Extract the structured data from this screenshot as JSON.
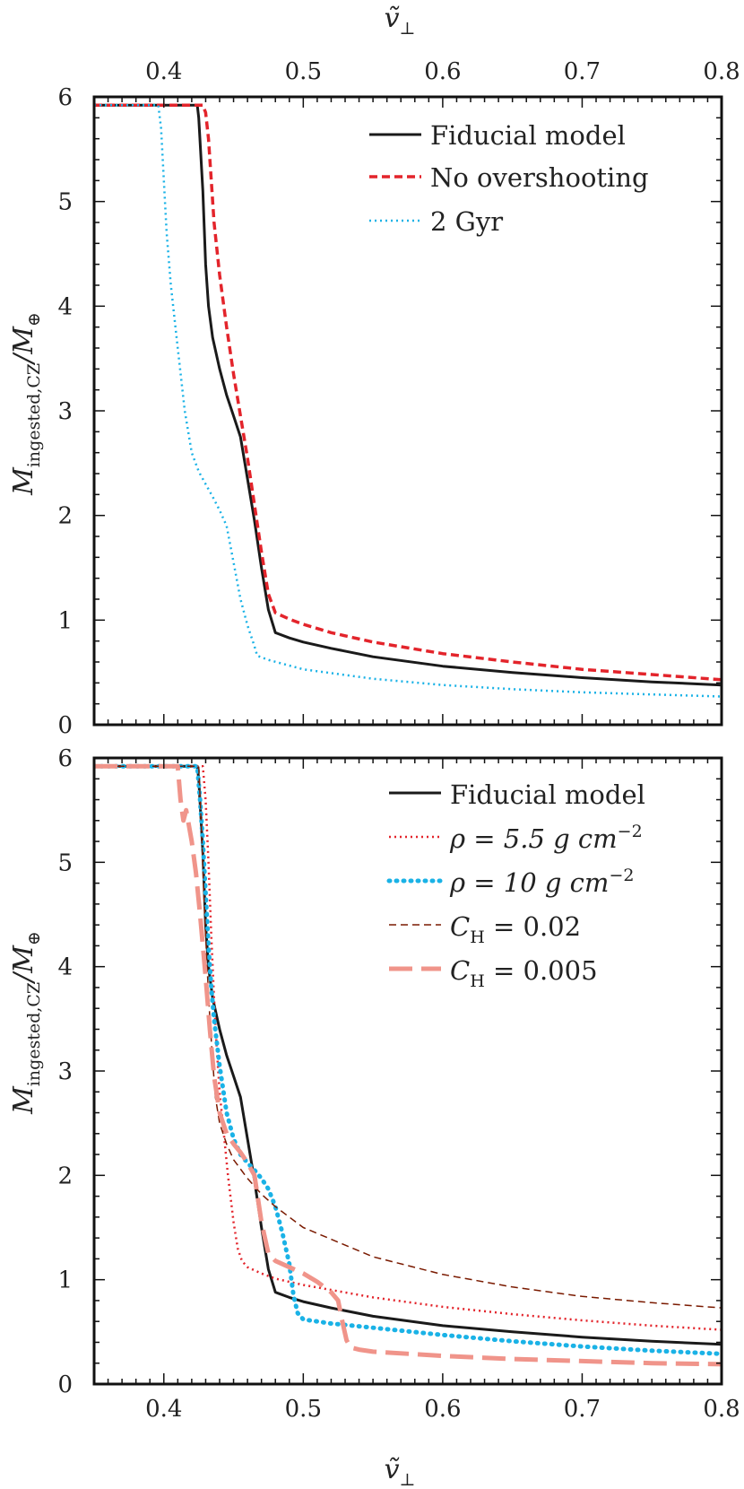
{
  "chart_data": [
    {
      "type": "line",
      "panel": "top",
      "xlabel_top": "ṽ⊥",
      "ylabel": "M_ingested,CZ / M_⊕",
      "xlim": [
        0.35,
        0.8
      ],
      "ylim": [
        0,
        6
      ],
      "xticks": [
        0.4,
        0.5,
        0.6,
        0.7,
        0.8
      ],
      "yticks": [
        0,
        1,
        2,
        3,
        4,
        5,
        6
      ],
      "legend_position": "top-right",
      "series": [
        {
          "name": "Fiducial model",
          "color": "#1a1a1a",
          "style": "solid",
          "x": [
            0.35,
            0.424,
            0.425,
            0.428,
            0.43,
            0.432,
            0.435,
            0.44,
            0.445,
            0.45,
            0.455,
            0.46,
            0.465,
            0.47,
            0.475,
            0.48,
            0.482,
            0.49,
            0.5,
            0.52,
            0.55,
            0.6,
            0.65,
            0.7,
            0.75,
            0.8
          ],
          "y": [
            5.92,
            5.92,
            5.8,
            5.1,
            4.4,
            4.0,
            3.7,
            3.4,
            3.15,
            2.95,
            2.75,
            2.35,
            1.95,
            1.5,
            1.1,
            0.88,
            0.87,
            0.83,
            0.79,
            0.73,
            0.65,
            0.56,
            0.5,
            0.45,
            0.41,
            0.38
          ]
        },
        {
          "name": "No overshooting",
          "color": "#e3242b",
          "style": "dashed",
          "x": [
            0.35,
            0.428,
            0.43,
            0.432,
            0.434,
            0.436,
            0.44,
            0.445,
            0.45,
            0.455,
            0.46,
            0.465,
            0.47,
            0.475,
            0.48,
            0.49,
            0.5,
            0.52,
            0.55,
            0.6,
            0.65,
            0.7,
            0.75,
            0.8
          ],
          "y": [
            5.92,
            5.92,
            5.85,
            5.6,
            5.2,
            4.8,
            4.3,
            3.8,
            3.35,
            2.95,
            2.55,
            2.1,
            1.65,
            1.25,
            1.07,
            1.01,
            0.96,
            0.88,
            0.79,
            0.68,
            0.6,
            0.53,
            0.48,
            0.43
          ]
        },
        {
          "name": "2 Gyr",
          "color": "#1ab2e6",
          "style": "dotted",
          "x": [
            0.35,
            0.396,
            0.398,
            0.4,
            0.402,
            0.405,
            0.41,
            0.415,
            0.42,
            0.425,
            0.43,
            0.435,
            0.44,
            0.445,
            0.45,
            0.455,
            0.46,
            0.465,
            0.467,
            0.475,
            0.5,
            0.55,
            0.6,
            0.65,
            0.7,
            0.75,
            0.8
          ],
          "y": [
            5.92,
            5.92,
            5.7,
            5.2,
            4.7,
            4.2,
            3.6,
            3.0,
            2.6,
            2.42,
            2.3,
            2.18,
            2.05,
            1.9,
            1.55,
            1.2,
            0.95,
            0.75,
            0.66,
            0.62,
            0.53,
            0.44,
            0.38,
            0.34,
            0.31,
            0.29,
            0.27
          ]
        }
      ]
    },
    {
      "type": "line",
      "panel": "bottom",
      "xlabel": "ṽ⊥",
      "ylabel": "M_ingested,CZ / M_⊕",
      "xlim": [
        0.35,
        0.8
      ],
      "ylim": [
        0,
        6
      ],
      "xticks": [
        0.4,
        0.5,
        0.6,
        0.7,
        0.8
      ],
      "yticks": [
        0,
        1,
        2,
        3,
        4,
        5,
        6
      ],
      "legend_position": "top-right",
      "series": [
        {
          "name": "Fiducial model",
          "color": "#1a1a1a",
          "style": "solid",
          "x": [
            0.35,
            0.424,
            0.425,
            0.428,
            0.43,
            0.432,
            0.435,
            0.44,
            0.445,
            0.45,
            0.455,
            0.46,
            0.465,
            0.47,
            0.475,
            0.48,
            0.482,
            0.49,
            0.5,
            0.52,
            0.55,
            0.6,
            0.65,
            0.7,
            0.75,
            0.8
          ],
          "y": [
            5.92,
            5.92,
            5.8,
            5.1,
            4.4,
            4.0,
            3.7,
            3.4,
            3.15,
            2.95,
            2.75,
            2.35,
            1.95,
            1.5,
            1.1,
            0.88,
            0.87,
            0.83,
            0.79,
            0.73,
            0.65,
            0.56,
            0.5,
            0.45,
            0.41,
            0.38
          ]
        },
        {
          "name": "ρ = 5.5 g cm⁻²",
          "color": "#e3242b",
          "style": "dotted-thin",
          "x": [
            0.35,
            0.428,
            0.43,
            0.432,
            0.434,
            0.436,
            0.438,
            0.44,
            0.443,
            0.446,
            0.45,
            0.453,
            0.456,
            0.46,
            0.47,
            0.48,
            0.5,
            0.55,
            0.6,
            0.65,
            0.7,
            0.75,
            0.8
          ],
          "y": [
            5.92,
            5.92,
            5.6,
            5.0,
            4.3,
            3.7,
            3.2,
            2.8,
            2.4,
            2.0,
            1.55,
            1.3,
            1.18,
            1.12,
            1.06,
            1.01,
            0.95,
            0.83,
            0.74,
            0.67,
            0.61,
            0.56,
            0.52
          ]
        },
        {
          "name": "ρ = 10 g cm⁻²",
          "color": "#1ab2e6",
          "style": "dotted-thick",
          "x": [
            0.35,
            0.424,
            0.426,
            0.428,
            0.43,
            0.432,
            0.434,
            0.436,
            0.44,
            0.445,
            0.45,
            0.455,
            0.46,
            0.465,
            0.47,
            0.475,
            0.48,
            0.485,
            0.49,
            0.493,
            0.496,
            0.5,
            0.52,
            0.55,
            0.6,
            0.65,
            0.7,
            0.75,
            0.8
          ],
          "y": [
            5.92,
            5.92,
            5.6,
            5.2,
            4.7,
            4.2,
            3.8,
            3.5,
            3.05,
            2.6,
            2.35,
            2.2,
            2.12,
            2.05,
            1.97,
            1.87,
            1.7,
            1.45,
            1.15,
            0.85,
            0.68,
            0.62,
            0.58,
            0.54,
            0.47,
            0.41,
            0.36,
            0.32,
            0.29
          ]
        },
        {
          "name": "C_H = 0.02",
          "color": "#7a1a00",
          "style": "dashed-thin",
          "x": [
            0.35,
            0.425,
            0.427,
            0.429,
            0.431,
            0.433,
            0.435,
            0.437,
            0.44,
            0.445,
            0.45,
            0.46,
            0.47,
            0.48,
            0.5,
            0.55,
            0.6,
            0.65,
            0.7,
            0.75,
            0.8
          ],
          "y": [
            5.92,
            5.92,
            5.3,
            4.6,
            4.0,
            3.5,
            3.1,
            2.75,
            2.5,
            2.3,
            2.15,
            1.97,
            1.82,
            1.7,
            1.5,
            1.22,
            1.05,
            0.93,
            0.84,
            0.78,
            0.73
          ]
        },
        {
          "name": "C_H = 0.005",
          "color": "#f0948a",
          "style": "long-dashed",
          "x": [
            0.35,
            0.41,
            0.412,
            0.414,
            0.416,
            0.418,
            0.42,
            0.423,
            0.426,
            0.43,
            0.433,
            0.436,
            0.44,
            0.445,
            0.45,
            0.455,
            0.46,
            0.465,
            0.47,
            0.475,
            0.48,
            0.49,
            0.5,
            0.51,
            0.52,
            0.525,
            0.528,
            0.531,
            0.534,
            0.54,
            0.55,
            0.6,
            0.65,
            0.7,
            0.75,
            0.8
          ],
          "y": [
            5.92,
            5.92,
            5.6,
            5.4,
            5.5,
            5.35,
            5.2,
            4.9,
            4.5,
            3.9,
            3.4,
            2.95,
            2.6,
            2.4,
            2.3,
            2.22,
            2.12,
            2.0,
            1.55,
            1.25,
            1.18,
            1.12,
            1.06,
            0.98,
            0.88,
            0.8,
            0.6,
            0.42,
            0.35,
            0.33,
            0.31,
            0.27,
            0.24,
            0.22,
            0.2,
            0.19
          ]
        }
      ]
    }
  ],
  "legend": {
    "top": [
      "Fiducial model",
      "No overshooting",
      "2 Gyr"
    ],
    "bottom": [
      "Fiducial model",
      "ρ = 5.5 g cm",
      "ρ = 10 g cm",
      "C",
      "C"
    ],
    "bottom_suffix": [
      "",
      "−2",
      "−2",
      " = 0.02",
      " = 0.005"
    ],
    "bottom_sub": [
      "",
      "",
      "",
      "H",
      "H"
    ]
  },
  "axis_labels": {
    "x_top": "ṽ",
    "x_bottom": "ṽ",
    "x_symbol_sub": "⊥",
    "y_main": "M",
    "y_sub": "ingested,CZ",
    "y_rest": "/M",
    "y_rest_sub": "⊕"
  }
}
